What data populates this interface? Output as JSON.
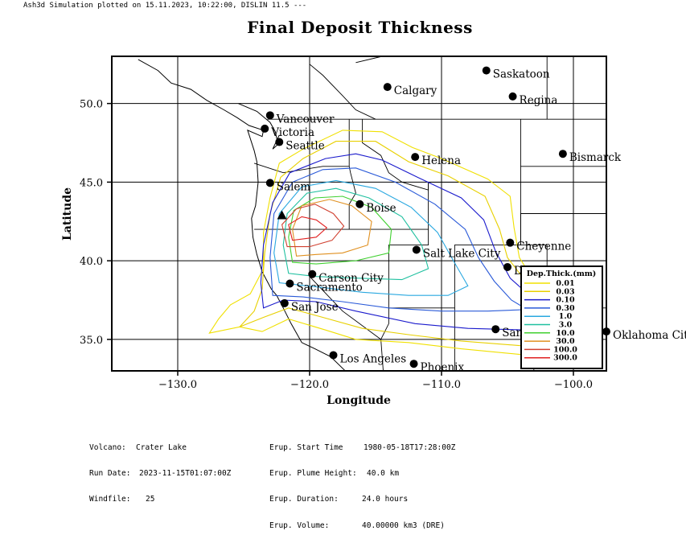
{
  "header": {
    "text": "Ash3d Simulation plotted on  15.11.2023, 10:22:00, DISLIN 11.5 ---"
  },
  "title": "Final Deposit Thickness",
  "axes": {
    "xlabel": "Longitude",
    "ylabel": "Latitude",
    "xticks": [
      -130.0,
      -120.0,
      -110.0,
      -100.0
    ],
    "yticks": [
      35.0,
      40.0,
      45.0,
      50.0
    ],
    "xtick_labels": [
      "−130.0",
      "−120.0",
      "−110.0",
      "−100.0"
    ],
    "ytick_labels": [
      "35.0",
      "40.0",
      "45.0",
      "50.0"
    ],
    "xlim": [
      -135.0,
      -97.5
    ],
    "ylim": [
      33.0,
      53.0
    ],
    "grid": true
  },
  "volcano": {
    "name": "Crater Lake",
    "lon": -122.1,
    "lat": 42.9,
    "marker": "triangle"
  },
  "cities": [
    {
      "name": "Vancouver",
      "lon": -123.0,
      "lat": 49.25
    },
    {
      "name": "Victoria",
      "lon": -123.4,
      "lat": 48.4
    },
    {
      "name": "Seattle",
      "lon": -122.3,
      "lat": 47.55
    },
    {
      "name": "Salem",
      "lon": -123.0,
      "lat": 44.95
    },
    {
      "name": "Boise",
      "lon": -116.2,
      "lat": 43.6
    },
    {
      "name": "Calgary",
      "lon": -114.1,
      "lat": 51.05
    },
    {
      "name": "Saskatoon",
      "lon": -106.6,
      "lat": 52.1
    },
    {
      "name": "Regina",
      "lon": -104.6,
      "lat": 50.45
    },
    {
      "name": "Helena",
      "lon": -112.0,
      "lat": 46.6
    },
    {
      "name": "Bismarck",
      "lon": -100.8,
      "lat": 46.8
    },
    {
      "name": "Cheyenne",
      "lon": -104.8,
      "lat": 41.15
    },
    {
      "name": "Denver",
      "lon": -105.0,
      "lat": 39.6
    },
    {
      "name": "Salt Lake City",
      "lon": -111.9,
      "lat": 40.7
    },
    {
      "name": "Carson City",
      "lon": -119.8,
      "lat": 39.15
    },
    {
      "name": "Sacramento",
      "lon": -121.5,
      "lat": 38.55
    },
    {
      "name": "San Jose",
      "lon": -121.9,
      "lat": 37.3
    },
    {
      "name": "Los Angeles",
      "lon": -118.2,
      "lat": 34.0
    },
    {
      "name": "Phoenix",
      "lon": -112.1,
      "lat": 33.45
    },
    {
      "name": "Santa Fe",
      "lon": -105.9,
      "lat": 35.65
    },
    {
      "name": "Oklahoma City",
      "lon": -97.5,
      "lat": 35.5
    }
  ],
  "legend": {
    "title": "Dep.Thick.(mm)",
    "placement": "bottom-right",
    "entries": [
      {
        "label": "0.01",
        "color": "#f0e000"
      },
      {
        "label": "0.03",
        "color": "#e8d000"
      },
      {
        "label": "0.10",
        "color": "#1a1acc"
      },
      {
        "label": "0.30",
        "color": "#2a5ad8"
      },
      {
        "label": "1.0",
        "color": "#2aa8e0"
      },
      {
        "label": "3.0",
        "color": "#20c0a0"
      },
      {
        "label": "10.0",
        "color": "#40d030"
      },
      {
        "label": "30.0",
        "color": "#e09020"
      },
      {
        "label": "100.0",
        "color": "#d04030"
      },
      {
        "label": "300.0",
        "color": "#e02020"
      }
    ]
  },
  "contours": [
    {
      "level": "0.01",
      "color": "#f0e000",
      "points": [
        [
          -127.6,
          35.4
        ],
        [
          -126.9,
          36.3
        ],
        [
          -126.0,
          37.2
        ],
        [
          -124.5,
          37.9
        ],
        [
          -123.5,
          39.5
        ],
        [
          -123.5,
          41.8
        ],
        [
          -123.0,
          44.0
        ],
        [
          -122.3,
          46.2
        ],
        [
          -120.5,
          47.1
        ],
        [
          -117.5,
          48.3
        ],
        [
          -114.5,
          48.2
        ],
        [
          -112.2,
          47.2
        ],
        [
          -110.0,
          46.5
        ],
        [
          -106.5,
          45.2
        ],
        [
          -104.8,
          44.1
        ],
        [
          -104.5,
          42.1
        ],
        [
          -104.1,
          40.2
        ],
        [
          -102.0,
          37.4
        ],
        [
          -99.5,
          35.7
        ],
        [
          -99.2,
          34.2
        ],
        [
          -103.5,
          34.0
        ],
        [
          -108.5,
          34.4
        ],
        [
          -112.5,
          34.8
        ],
        [
          -116.5,
          35.0
        ],
        [
          -118.8,
          35.6
        ],
        [
          -121.6,
          36.3
        ],
        [
          -123.6,
          35.5
        ],
        [
          -125.3,
          35.8
        ],
        [
          -127.6,
          35.4
        ]
      ]
    },
    {
      "level": "0.03",
      "color": "#e8d000",
      "points": [
        [
          -125.3,
          35.8
        ],
        [
          -124.2,
          36.8
        ],
        [
          -123.6,
          38.2
        ],
        [
          -123.4,
          40.5
        ],
        [
          -123.0,
          43.0
        ],
        [
          -122.2,
          45.3
        ],
        [
          -120.5,
          46.5
        ],
        [
          -118.0,
          47.6
        ],
        [
          -115.0,
          47.6
        ],
        [
          -112.5,
          46.3
        ],
        [
          -109.5,
          45.4
        ],
        [
          -106.7,
          44.1
        ],
        [
          -105.6,
          42.0
        ],
        [
          -105.0,
          40.2
        ],
        [
          -102.8,
          37.8
        ],
        [
          -100.5,
          36.1
        ],
        [
          -100.0,
          34.8
        ],
        [
          -104.0,
          34.6
        ],
        [
          -108.5,
          34.9
        ],
        [
          -112.5,
          35.3
        ],
        [
          -116.0,
          35.7
        ],
        [
          -119.0,
          36.4
        ],
        [
          -121.6,
          37.0
        ],
        [
          -123.5,
          36.4
        ],
        [
          -125.3,
          35.8
        ]
      ]
    },
    {
      "level": "0.10",
      "color": "#1a1acc",
      "points": [
        [
          -123.5,
          37.0
        ],
        [
          -123.7,
          38.6
        ],
        [
          -123.5,
          41.0
        ],
        [
          -122.8,
          43.7
        ],
        [
          -121.5,
          45.6
        ],
        [
          -118.8,
          46.5
        ],
        [
          -116.5,
          46.8
        ],
        [
          -114.5,
          46.4
        ],
        [
          -111.8,
          45.3
        ],
        [
          -108.5,
          44.0
        ],
        [
          -106.8,
          42.6
        ],
        [
          -105.9,
          40.6
        ],
        [
          -104.8,
          38.9
        ],
        [
          -102.8,
          37.4
        ],
        [
          -100.9,
          36.0
        ],
        [
          -103.5,
          35.6
        ],
        [
          -108.0,
          35.7
        ],
        [
          -112.0,
          36.0
        ],
        [
          -116.5,
          36.8
        ],
        [
          -119.5,
          37.4
        ],
        [
          -122.0,
          37.5
        ],
        [
          -123.5,
          37.0
        ]
      ]
    },
    {
      "level": "0.30",
      "color": "#2a5ad8",
      "points": [
        [
          -122.8,
          37.8
        ],
        [
          -123.0,
          40.2
        ],
        [
          -122.7,
          43.0
        ],
        [
          -121.3,
          45.0
        ],
        [
          -119.0,
          45.8
        ],
        [
          -116.5,
          45.9
        ],
        [
          -113.5,
          45.0
        ],
        [
          -110.5,
          43.6
        ],
        [
          -108.2,
          42.0
        ],
        [
          -107.2,
          40.2
        ],
        [
          -106.0,
          38.7
        ],
        [
          -104.7,
          37.5
        ],
        [
          -103.5,
          36.9
        ],
        [
          -106.5,
          36.8
        ],
        [
          -110.0,
          36.8
        ],
        [
          -114.0,
          37.0
        ],
        [
          -117.5,
          37.4
        ],
        [
          -120.5,
          37.7
        ],
        [
          -122.8,
          37.8
        ]
      ]
    },
    {
      "level": "1.0",
      "color": "#2aa8e0",
      "points": [
        [
          -122.3,
          38.6
        ],
        [
          -122.7,
          40.5
        ],
        [
          -122.3,
          43.0
        ],
        [
          -120.6,
          44.7
        ],
        [
          -118.0,
          45.1
        ],
        [
          -115.0,
          44.6
        ],
        [
          -112.3,
          43.4
        ],
        [
          -110.3,
          41.8
        ],
        [
          -109.1,
          40.0
        ],
        [
          -108.0,
          38.4
        ],
        [
          -109.5,
          37.8
        ],
        [
          -112.5,
          37.8
        ],
        [
          -116.0,
          38.0
        ],
        [
          -119.0,
          38.3
        ],
        [
          -122.3,
          38.6
        ]
      ]
    },
    {
      "level": "3.0",
      "color": "#20c0a0",
      "points": [
        [
          -121.6,
          39.2
        ],
        [
          -122.0,
          41.0
        ],
        [
          -121.7,
          43.0
        ],
        [
          -120.2,
          44.3
        ],
        [
          -118.0,
          44.6
        ],
        [
          -115.5,
          44.0
        ],
        [
          -113.0,
          42.8
        ],
        [
          -111.5,
          41.0
        ],
        [
          -111.0,
          39.5
        ],
        [
          -113.0,
          38.8
        ],
        [
          -116.5,
          38.9
        ],
        [
          -119.5,
          39.0
        ],
        [
          -121.6,
          39.2
        ]
      ]
    },
    {
      "level": "10.0",
      "color": "#40d030",
      "points": [
        [
          -121.3,
          39.9
        ],
        [
          -121.6,
          41.5
        ],
        [
          -121.2,
          43.2
        ],
        [
          -119.6,
          44.0
        ],
        [
          -117.5,
          44.1
        ],
        [
          -115.3,
          43.4
        ],
        [
          -113.8,
          42.0
        ],
        [
          -114.0,
          40.5
        ],
        [
          -116.5,
          40.0
        ],
        [
          -119.5,
          39.8
        ],
        [
          -121.3,
          39.9
        ]
      ]
    },
    {
      "level": "30.0",
      "color": "#e09020",
      "points": [
        [
          -121.0,
          40.3
        ],
        [
          -121.3,
          42.0
        ],
        [
          -120.6,
          43.5
        ],
        [
          -118.5,
          43.9
        ],
        [
          -116.8,
          43.5
        ],
        [
          -115.3,
          42.5
        ],
        [
          -115.6,
          41.0
        ],
        [
          -117.5,
          40.5
        ],
        [
          -119.5,
          40.4
        ],
        [
          -121.0,
          40.3
        ]
      ]
    },
    {
      "level": "100.0",
      "color": "#d04030",
      "points": [
        [
          -121.7,
          40.9
        ],
        [
          -122.1,
          42.3
        ],
        [
          -121.0,
          43.3
        ],
        [
          -119.6,
          43.6
        ],
        [
          -118.2,
          43.0
        ],
        [
          -117.4,
          42.2
        ],
        [
          -118.3,
          41.3
        ],
        [
          -120.0,
          40.9
        ],
        [
          -121.7,
          40.9
        ]
      ]
    },
    {
      "level": "300.0",
      "color": "#e02020",
      "points": [
        [
          -121.3,
          41.3
        ],
        [
          -121.6,
          42.3
        ],
        [
          -120.6,
          42.8
        ],
        [
          -119.5,
          42.6
        ],
        [
          -118.7,
          42.1
        ],
        [
          -119.5,
          41.5
        ],
        [
          -121.3,
          41.3
        ]
      ]
    }
  ],
  "coastline": [
    [
      [
        -133.0,
        52.8
      ],
      [
        -131.5,
        52.1
      ],
      [
        -130.5,
        51.3
      ],
      [
        -129.0,
        50.9
      ],
      [
        -127.8,
        50.2
      ],
      [
        -126.5,
        49.6
      ],
      [
        -125.5,
        49.1
      ],
      [
        -124.6,
        48.6
      ],
      [
        -123.5,
        48.3
      ],
      [
        -123.6,
        47.9
      ],
      [
        -124.7,
        48.3
      ],
      [
        -124.2,
        47.0
      ],
      [
        -124.0,
        46.3
      ],
      [
        -123.9,
        45.0
      ],
      [
        -124.1,
        43.5
      ],
      [
        -124.4,
        42.7
      ],
      [
        -124.3,
        41.5
      ],
      [
        -124.0,
        40.4
      ],
      [
        -123.6,
        39.3
      ],
      [
        -122.9,
        38.2
      ],
      [
        -122.5,
        37.8
      ],
      [
        -122.0,
        37.0
      ],
      [
        -121.4,
        36.0
      ],
      [
        -120.6,
        34.8
      ],
      [
        -119.6,
        34.4
      ],
      [
        -118.4,
        33.9
      ],
      [
        -117.3,
        33.0
      ],
      [
        -117.1,
        32.6
      ]
    ],
    [
      [
        -125.4,
        50.0
      ],
      [
        -124.0,
        49.5
      ],
      [
        -123.0,
        48.8
      ],
      [
        -122.6,
        48.2
      ],
      [
        -122.4,
        47.4
      ],
      [
        -122.8,
        47.1
      ],
      [
        -122.3,
        48.0
      ]
    ],
    [
      [
        -116.5,
        52.6
      ],
      [
        -114.5,
        53.0
      ]
    ]
  ],
  "borders": [
    [
      [
        -123.2,
        49.0
      ],
      [
        -115.0,
        49.0
      ],
      [
        -105.0,
        49.0
      ],
      [
        -97.5,
        49.0
      ]
    ],
    [
      [
        -120.0,
        53.0
      ],
      [
        -120.0,
        52.5
      ],
      [
        -119.0,
        51.8
      ],
      [
        -117.5,
        50.5
      ],
      [
        -116.5,
        49.6
      ],
      [
        -115.0,
        49.0
      ]
    ],
    [
      [
        -110.0,
        53.0
      ],
      [
        -110.0,
        49.0
      ]
    ],
    [
      [
        -102.0,
        53.0
      ],
      [
        -102.0,
        49.0
      ]
    ],
    [
      [
        -124.2,
        46.2
      ],
      [
        -122.0,
        45.6
      ],
      [
        -119.0,
        46.0
      ],
      [
        -117.0,
        46.0
      ],
      [
        -116.9,
        45.6
      ],
      [
        -116.5,
        44.3
      ],
      [
        -117.0,
        43.6
      ],
      [
        -117.0,
        42.0
      ]
    ],
    [
      [
        -124.2,
        42.0
      ],
      [
        -117.0,
        42.0
      ],
      [
        -111.0,
        42.0
      ]
    ],
    [
      [
        -120.0,
        42.0
      ],
      [
        -120.0,
        39.0
      ],
      [
        -117.5,
        36.8
      ],
      [
        -114.6,
        35.0
      ],
      [
        -114.4,
        32.8
      ]
    ],
    [
      [
        -117.0,
        49.0
      ],
      [
        -117.0,
        46.0
      ]
    ],
    [
      [
        -116.0,
        49.0
      ],
      [
        -116.0,
        47.5
      ],
      [
        -114.6,
        46.7
      ],
      [
        -114.0,
        45.6
      ],
      [
        -113.0,
        45.0
      ],
      [
        -111.0,
        44.5
      ],
      [
        -111.0,
        45.0
      ],
      [
        -104.0,
        45.0
      ]
    ],
    [
      [
        -111.0,
        45.0
      ],
      [
        -111.0,
        41.0
      ],
      [
        -114.0,
        41.0
      ],
      [
        -114.0,
        37.0
      ],
      [
        -109.0,
        37.0
      ],
      [
        -109.0,
        41.0
      ],
      [
        -104.0,
        41.0
      ],
      [
        -104.0,
        45.0
      ]
    ],
    [
      [
        -114.0,
        37.0
      ],
      [
        -114.0,
        36.0
      ],
      [
        -114.6,
        35.0
      ]
    ],
    [
      [
        -109.0,
        37.0
      ],
      [
        -109.0,
        31.3
      ]
    ],
    [
      [
        -104.0,
        49.0
      ],
      [
        -104.0,
        45.0
      ]
    ],
    [
      [
        -104.0,
        41.0
      ],
      [
        -102.0,
        41.0
      ],
      [
        -102.0,
        37.0
      ],
      [
        -103.0,
        37.0
      ],
      [
        -103.0,
        32.0
      ]
    ],
    [
      [
        -102.0,
        40.0
      ],
      [
        -97.5,
        40.0
      ]
    ],
    [
      [
        -102.0,
        37.0
      ],
      [
        -97.5,
        37.0
      ]
    ],
    [
      [
        -103.0,
        36.5
      ],
      [
        -100.0,
        36.5
      ],
      [
        -100.0,
        33.0
      ]
    ],
    [
      [
        -97.5,
        46.0
      ],
      [
        -104.0,
        46.0
      ]
    ],
    [
      [
        -97.5,
        43.0
      ],
      [
        -104.0,
        43.0
      ]
    ],
    [
      [
        -104.0,
        43.0
      ],
      [
        -104.0,
        41.0
      ]
    ]
  ],
  "info_left": [
    {
      "key": "Volcano:",
      "value": "Crater Lake"
    },
    {
      "key": "Run Date:",
      "value": "2023-11-15T01:07:00Z"
    },
    {
      "key": "Windfile:",
      "value": "25"
    }
  ],
  "info_right": [
    {
      "key": "Erup. Start Time",
      "value": "1980-05-18T17:28:00Z"
    },
    {
      "key": "Erup. Plume Height:",
      "value": "40.0 km"
    },
    {
      "key": "Erup. Duration:",
      "value": "24.0 hours"
    },
    {
      "key": "Erup. Volume:",
      "value": "40.00000 km3 (DRE)"
    }
  ]
}
